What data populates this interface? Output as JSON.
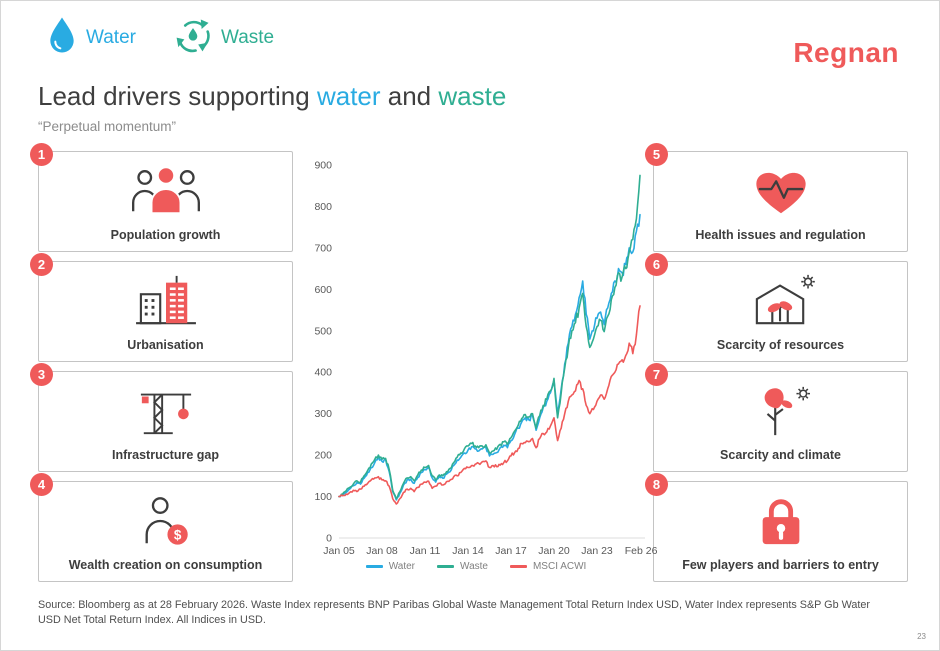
{
  "theme": {
    "water": "#29abe2",
    "waste": "#2fae92",
    "coral": "#ef5a5a",
    "dark": "#3d3d3d"
  },
  "header": {
    "water_label": "Water",
    "waste_label": "Waste",
    "logo": "Regnan"
  },
  "title": {
    "prefix": "Lead drivers supporting ",
    "water_word": "water",
    "and_word": " and ",
    "waste_word": "waste",
    "subtitle": "“Perpetual momentum”"
  },
  "drivers": {
    "left": [
      {
        "number": "1",
        "label": "Population growth",
        "icon": "population"
      },
      {
        "number": "2",
        "label": "Urbanisation",
        "icon": "urbanisation"
      },
      {
        "number": "3",
        "label": "Infrastructure gap",
        "icon": "infrastructure"
      },
      {
        "number": "4",
        "label": "Wealth creation on consumption",
        "icon": "wealth"
      }
    ],
    "right": [
      {
        "number": "5",
        "label": "Health issues and regulation",
        "icon": "health"
      },
      {
        "number": "6",
        "label": "Scarcity of resources",
        "icon": "resources"
      },
      {
        "number": "7",
        "label": "Scarcity and climate",
        "icon": "climate"
      },
      {
        "number": "8",
        "label": "Few players and barriers to entry",
        "icon": "lock"
      }
    ]
  },
  "chart_data": {
    "type": "line",
    "title": "",
    "xlabel": "",
    "ylabel": "",
    "grid": false,
    "legend_position": "bottom",
    "ylim": [
      0,
      900
    ],
    "y_ticks": [
      0,
      100,
      200,
      300,
      400,
      500,
      600,
      700,
      800,
      900
    ],
    "x_ticks": [
      "Jan 05",
      "Jan 08",
      "Jan 11",
      "Jan 14",
      "Jan 17",
      "Jan 20",
      "Jan 23",
      "Feb 26"
    ],
    "x_tick_years": [
      2005,
      2008,
      2011,
      2014,
      2017,
      2020,
      2023,
      2026.08
    ],
    "x_start": 2005,
    "x_step_years": 0.25,
    "x_domain": [
      2005,
      2026.35
    ],
    "series": [
      {
        "name": "Water",
        "color": "#29abe2",
        "values": [
          100,
          104,
          110,
          118,
          126,
          134,
          130,
          144,
          158,
          170,
          182,
          195,
          185,
          190,
          160,
          112,
          92,
          108,
          128,
          140,
          142,
          132,
          146,
          158,
          165,
          170,
          145,
          135,
          148,
          144,
          154,
          160,
          175,
          188,
          195,
          205,
          212,
          220,
          215,
          210,
          215,
          218,
          198,
          202,
          206,
          218,
          224,
          218,
          235,
          250,
          265,
          280,
          290,
          285,
          295,
          260,
          290,
          315,
          330,
          350,
          380,
          300,
          360,
          420,
          470,
          510,
          540,
          580,
          620,
          540,
          480,
          500,
          530,
          545,
          515,
          555,
          590,
          620,
          650,
          640,
          660,
          700,
          690,
          740,
          780
        ]
      },
      {
        "name": "Waste",
        "color": "#2fae92",
        "values": [
          100,
          106,
          114,
          122,
          130,
          138,
          135,
          150,
          163,
          178,
          190,
          200,
          190,
          192,
          165,
          115,
          95,
          112,
          132,
          145,
          148,
          138,
          152,
          164,
          170,
          175,
          150,
          140,
          152,
          150,
          160,
          168,
          182,
          195,
          205,
          215,
          222,
          228,
          222,
          218,
          222,
          225,
          205,
          210,
          214,
          226,
          232,
          226,
          242,
          258,
          272,
          288,
          298,
          292,
          300,
          265,
          295,
          320,
          335,
          355,
          385,
          290,
          350,
          410,
          460,
          500,
          520,
          555,
          590,
          510,
          460,
          480,
          510,
          525,
          498,
          535,
          575,
          605,
          640,
          630,
          650,
          690,
          720,
          770,
          875
        ]
      },
      {
        "name": "MSCI ACWI",
        "color": "#ef5a5a",
        "values": [
          100,
          102,
          106,
          110,
          115,
          112,
          118,
          125,
          132,
          140,
          145,
          148,
          140,
          138,
          125,
          95,
          82,
          95,
          110,
          118,
          120,
          112,
          122,
          130,
          135,
          137,
          120,
          125,
          132,
          128,
          136,
          140,
          148,
          150,
          158,
          168,
          170,
          175,
          178,
          180,
          184,
          186,
          170,
          175,
          172,
          176,
          182,
          186,
          198,
          206,
          216,
          228,
          230,
          232,
          240,
          218,
          240,
          252,
          256,
          270,
          290,
          235,
          265,
          300,
          330,
          345,
          355,
          380,
          360,
          320,
          300,
          310,
          330,
          345,
          335,
          360,
          390,
          400,
          420,
          430,
          440,
          470,
          445,
          490,
          560
        ]
      }
    ]
  },
  "footer": {
    "source": "Source: Bloomberg as at 28 February 2026. Waste Index represents BNP Paribas Global Waste Management Total Return Index USD, Water Index represents S&P Gb Water USD Net Total Return Index. All Indices in USD.",
    "page_number": "23"
  }
}
